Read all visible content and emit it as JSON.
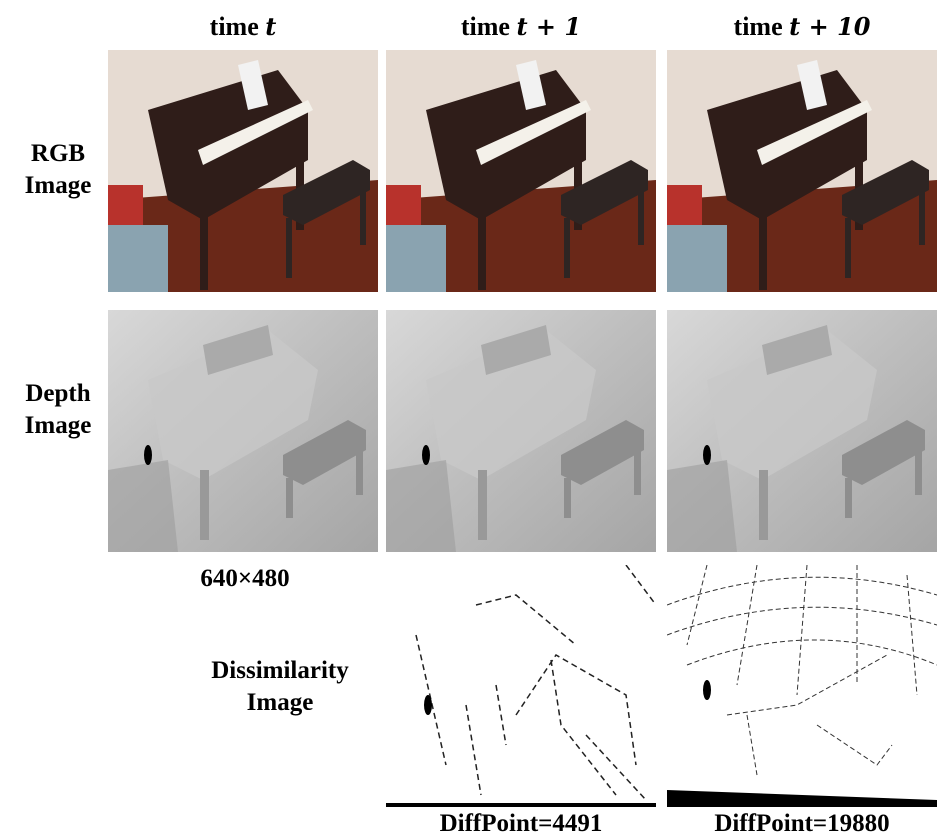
{
  "columns": [
    {
      "label": "time",
      "math": "t"
    },
    {
      "label": "time",
      "math": "t + 1"
    },
    {
      "label": "time",
      "math": "t + 10"
    }
  ],
  "rows": [
    "RGB Image",
    "Depth Image",
    "Dissimilarity Image"
  ],
  "resolution": "640×480",
  "captions": [
    "DiffPoint=4491",
    "DiffPoint=19880"
  ]
}
